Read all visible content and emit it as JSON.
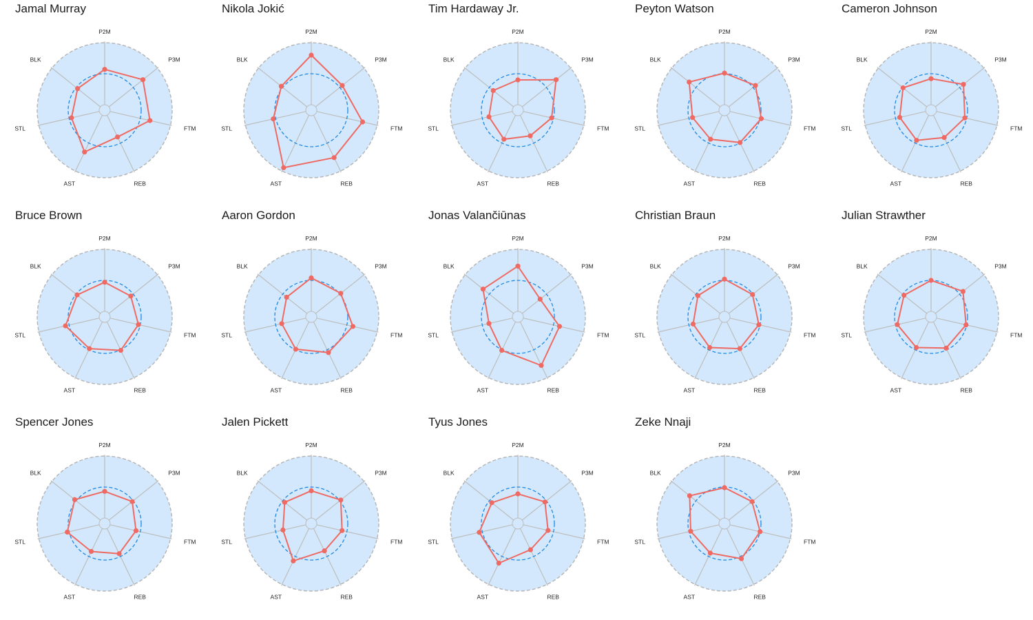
{
  "colors": {
    "background_disc": "#d3e8fc",
    "disc_border": "#b3b3b3",
    "spokes": "#bdbdbd",
    "average_circle": "#1e88e5",
    "player_line": "#ee6a63",
    "player_point": "#ee6a63"
  },
  "chart_data": [
    {
      "type": "radar",
      "title": "Jamal Murray",
      "axes": [
        "P2M",
        "P3M",
        "FTM",
        "REB",
        "AST",
        "STL",
        "BLK"
      ],
      "values": [
        0.57,
        0.7,
        0.66,
        0.39,
        0.66,
        0.46,
        0.47
      ],
      "average_ring": 0.5,
      "rlim": [
        0,
        1
      ],
      "grid": false
    },
    {
      "type": "radar",
      "title": "Nikola Jokić",
      "axes": [
        "P2M",
        "P3M",
        "FTM",
        "REB",
        "AST",
        "STL",
        "BLK"
      ],
      "values": [
        0.8,
        0.55,
        0.76,
        0.76,
        0.94,
        0.54,
        0.53
      ],
      "average_ring": 0.5,
      "rlim": [
        0,
        1
      ],
      "grid": false
    },
    {
      "type": "radar",
      "title": "Tim Hardaway Jr.",
      "axes": [
        "P2M",
        "P3M",
        "FTM",
        "REB",
        "AST",
        "STL",
        "BLK"
      ],
      "values": [
        0.4,
        0.7,
        0.47,
        0.37,
        0.43,
        0.39,
        0.42
      ],
      "average_ring": 0.5,
      "rlim": [
        0,
        1
      ],
      "grid": false
    },
    {
      "type": "radar",
      "title": "Peyton Watson",
      "axes": [
        "P2M",
        "P3M",
        "FTM",
        "REB",
        "AST",
        "STL",
        "BLK"
      ],
      "values": [
        0.51,
        0.55,
        0.52,
        0.49,
        0.43,
        0.44,
        0.64
      ],
      "average_ring": 0.5,
      "rlim": [
        0,
        1
      ],
      "grid": false
    },
    {
      "type": "radar",
      "title": "Cameron Johnson",
      "axes": [
        "P2M",
        "P3M",
        "FTM",
        "REB",
        "AST",
        "STL",
        "BLK"
      ],
      "values": [
        0.42,
        0.58,
        0.47,
        0.4,
        0.45,
        0.43,
        0.49
      ],
      "average_ring": 0.5,
      "rlim": [
        0,
        1
      ],
      "grid": false
    },
    {
      "type": "radar",
      "title": "Bruce Brown",
      "axes": [
        "P2M",
        "P3M",
        "FTM",
        "REB",
        "AST",
        "STL",
        "BLK"
      ],
      "values": [
        0.47,
        0.45,
        0.47,
        0.51,
        0.48,
        0.56,
        0.48
      ],
      "average_ring": 0.5,
      "rlim": [
        0,
        1
      ],
      "grid": false
    },
    {
      "type": "radar",
      "title": "Aaron Gordon",
      "axes": [
        "P2M",
        "P3M",
        "FTM",
        "REB",
        "AST",
        "STL",
        "BLK"
      ],
      "values": [
        0.54,
        0.52,
        0.6,
        0.55,
        0.49,
        0.4,
        0.42
      ],
      "average_ring": 0.5,
      "rlim": [
        0,
        1
      ],
      "grid": false
    },
    {
      "type": "radar",
      "title": "Jonas Valančiūnas",
      "axes": [
        "P2M",
        "P3M",
        "FTM",
        "REB",
        "AST",
        "STL",
        "BLK"
      ],
      "values": [
        0.73,
        0.37,
        0.6,
        0.78,
        0.51,
        0.39,
        0.63
      ],
      "average_ring": 0.5,
      "rlim": [
        0,
        1
      ],
      "grid": false
    },
    {
      "type": "radar",
      "title": "Christian Braun",
      "axes": [
        "P2M",
        "P3M",
        "FTM",
        "REB",
        "AST",
        "STL",
        "BLK"
      ],
      "values": [
        0.52,
        0.49,
        0.48,
        0.48,
        0.46,
        0.43,
        0.46
      ],
      "average_ring": 0.5,
      "rlim": [
        0,
        1
      ],
      "grid": false
    },
    {
      "type": "radar",
      "title": "Julian Strawther",
      "axes": [
        "P2M",
        "P3M",
        "FTM",
        "REB",
        "AST",
        "STL",
        "BLK"
      ],
      "values": [
        0.5,
        0.57,
        0.49,
        0.47,
        0.46,
        0.47,
        0.47
      ],
      "average_ring": 0.5,
      "rlim": [
        0,
        1
      ],
      "grid": false
    },
    {
      "type": "radar",
      "title": "Spencer Jones",
      "axes": [
        "P2M",
        "P3M",
        "FTM",
        "REB",
        "AST",
        "STL",
        "BLK"
      ],
      "values": [
        0.43,
        0.48,
        0.43,
        0.45,
        0.41,
        0.53,
        0.53
      ],
      "average_ring": 0.5,
      "rlim": [
        0,
        1
      ],
      "grid": false
    },
    {
      "type": "radar",
      "title": "Jalen Pickett",
      "axes": [
        "P2M",
        "P3M",
        "FTM",
        "REB",
        "AST",
        "STL",
        "BLK"
      ],
      "values": [
        0.44,
        0.52,
        0.42,
        0.4,
        0.58,
        0.38,
        0.46
      ],
      "average_ring": 0.5,
      "rlim": [
        0,
        1
      ],
      "grid": false
    },
    {
      "type": "radar",
      "title": "Tyus Jones",
      "axes": [
        "P2M",
        "P3M",
        "FTM",
        "REB",
        "AST",
        "STL",
        "BLK"
      ],
      "values": [
        0.39,
        0.47,
        0.41,
        0.38,
        0.62,
        0.55,
        0.45
      ],
      "average_ring": 0.5,
      "rlim": [
        0,
        1
      ],
      "grid": false
    },
    {
      "type": "radar",
      "title": "Zeke Nnaji",
      "axes": [
        "P2M",
        "P3M",
        "FTM",
        "REB",
        "AST",
        "STL",
        "BLK"
      ],
      "values": [
        0.49,
        0.48,
        0.5,
        0.54,
        0.44,
        0.47,
        0.63
      ],
      "average_ring": 0.5,
      "rlim": [
        0,
        1
      ],
      "grid": false
    }
  ]
}
